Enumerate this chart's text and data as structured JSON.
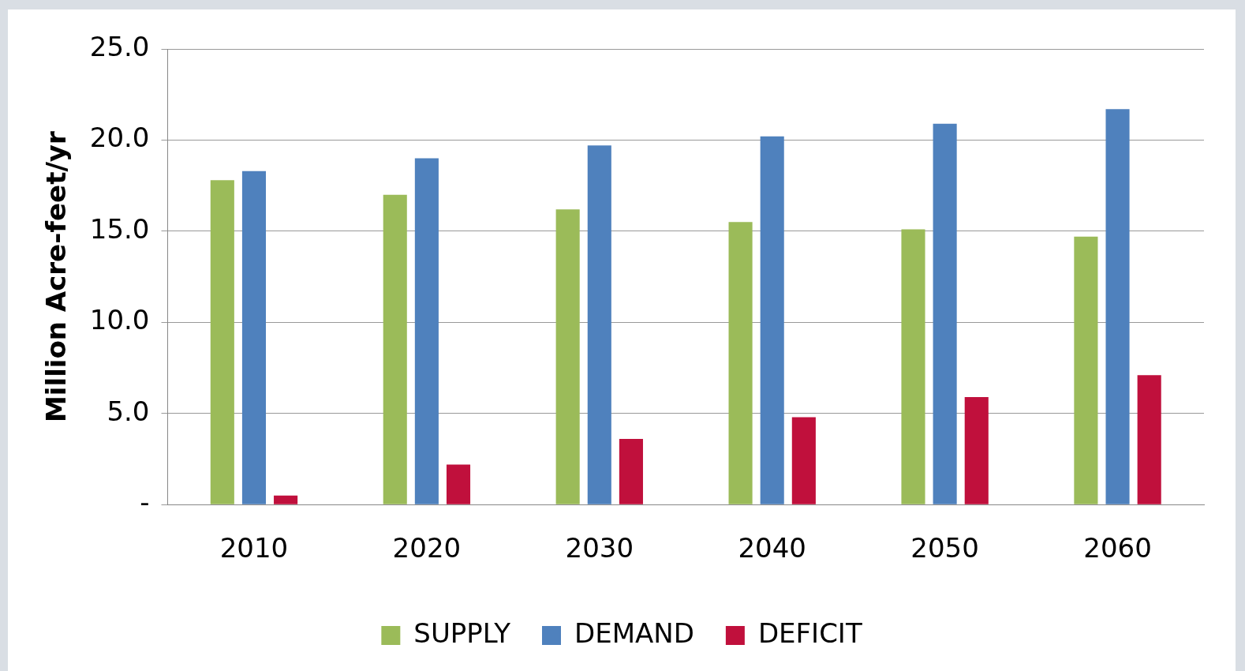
{
  "chart_data": {
    "type": "bar",
    "ylabel": "Million Acre-feet/yr",
    "categories": [
      "2010",
      "2020",
      "2030",
      "2040",
      "2050",
      "2060"
    ],
    "series": [
      {
        "name": "SUPPLY",
        "color": "#9bbb59",
        "values": [
          17.8,
          17.0,
          16.2,
          15.5,
          15.1,
          14.7
        ]
      },
      {
        "name": "DEMAND",
        "color": "#4f81bd",
        "values": [
          18.3,
          19.0,
          19.7,
          20.2,
          20.9,
          21.7
        ]
      },
      {
        "name": "DEFICIT",
        "color": "#c0103c",
        "values": [
          0.5,
          2.2,
          3.6,
          4.8,
          5.9,
          7.1
        ]
      }
    ],
    "ylim": [
      0,
      25
    ],
    "yticks": [
      {
        "value": 0,
        "label": "-"
      },
      {
        "value": 5,
        "label": "5.0"
      },
      {
        "value": 10,
        "label": "10.0"
      },
      {
        "value": 15,
        "label": "15.0"
      },
      {
        "value": 20,
        "label": "20.0"
      },
      {
        "value": 25,
        "label": "25.0"
      }
    ],
    "grid": "y",
    "legend": "bottom"
  }
}
